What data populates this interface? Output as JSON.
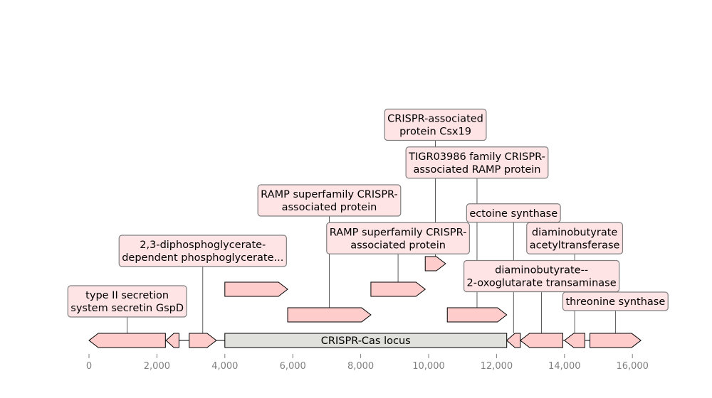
{
  "chart_data": {
    "type": "gene-map",
    "x_ticks": [
      0,
      2000,
      4000,
      6000,
      8000,
      10000,
      12000,
      14000,
      16000
    ],
    "x_tick_labels": [
      "0",
      "2,000",
      "4,000",
      "6,000",
      "8,000",
      "10,000",
      "12,000",
      "14,000",
      "16,000"
    ],
    "xlim": [
      0,
      17000
    ],
    "locus": {
      "label": "CRISPR-Cas locus",
      "start": 4000,
      "end": 12300
    },
    "features": [
      {
        "start": 0,
        "end": 2250,
        "strand": -1,
        "lane": 0,
        "label": [
          "type II secretion",
          "system secretin GspD"
        ],
        "label_level": 1
      },
      {
        "start": 2270,
        "end": 2650,
        "strand": -1,
        "lane": 0,
        "label": null
      },
      {
        "start": 2950,
        "end": 3750,
        "strand": 1,
        "lane": 0,
        "label": [
          "2,3-diphosphoglycerate-",
          "dependent phosphoglycerate..."
        ],
        "label_level": 3
      },
      {
        "start": 4000,
        "end": 5850,
        "strand": 1,
        "lane": 2,
        "label": null
      },
      {
        "start": 5850,
        "end": 8300,
        "strand": 1,
        "lane": 1,
        "label": [
          "RAMP superfamily CRISPR-",
          "associated protein"
        ],
        "label_level": 5
      },
      {
        "start": 8300,
        "end": 9900,
        "strand": 1,
        "lane": 2,
        "label": [
          "RAMP superfamily CRISPR-",
          "associated protein"
        ],
        "label_level": 3.5
      },
      {
        "start": 9900,
        "end": 10500,
        "strand": 1,
        "lane": 3,
        "label": [
          "CRISPR-associated",
          "protein Csx19"
        ],
        "label_level": 8
      },
      {
        "start": 10550,
        "end": 12300,
        "strand": 1,
        "lane": 1,
        "label": [
          "TIGR03986 family CRISPR-",
          "associated RAMP protein"
        ],
        "label_level": 6.5
      },
      {
        "start": 12300,
        "end": 12700,
        "strand": -1,
        "lane": 0,
        "label": [
          "ectoine synthase"
        ],
        "label_level": 4.5
      },
      {
        "start": 12700,
        "end": 13950,
        "strand": -1,
        "lane": 0,
        "label": [
          "diaminobutyrate--",
          "2-oxoglutarate transaminase"
        ],
        "label_level": 2
      },
      {
        "start": 14000,
        "end": 14600,
        "strand": -1,
        "lane": 0,
        "label": [
          "diaminobutyrate",
          "acetyltransferase"
        ],
        "label_level": 3.5
      },
      {
        "start": 14750,
        "end": 16250,
        "strand": 1,
        "lane": 0,
        "label": [
          "threonine synthase"
        ],
        "label_level": 1
      }
    ]
  },
  "colors": {
    "feature_fill": "#ffcccc",
    "locus_fill": "#e0e0dc",
    "label_box_fill": "#ffe4e6",
    "label_box_stroke": "#7f7f7f",
    "tick_text": "#808080"
  }
}
